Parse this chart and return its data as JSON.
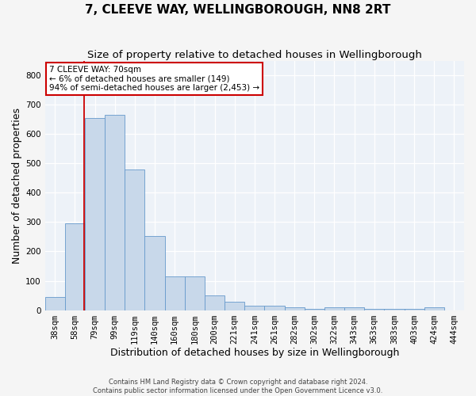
{
  "title": "7, CLEEVE WAY, WELLINGBOROUGH, NN8 2RT",
  "subtitle": "Size of property relative to detached houses in Wellingborough",
  "xlabel": "Distribution of detached houses by size in Wellingborough",
  "ylabel": "Number of detached properties",
  "footer1": "Contains HM Land Registry data © Crown copyright and database right 2024.",
  "footer2": "Contains public sector information licensed under the Open Government Licence v3.0.",
  "categories": [
    "38sqm",
    "58sqm",
    "79sqm",
    "99sqm",
    "119sqm",
    "140sqm",
    "160sqm",
    "180sqm",
    "200sqm",
    "221sqm",
    "241sqm",
    "261sqm",
    "282sqm",
    "302sqm",
    "322sqm",
    "343sqm",
    "363sqm",
    "383sqm",
    "403sqm",
    "424sqm",
    "444sqm"
  ],
  "values": [
    45,
    295,
    655,
    665,
    480,
    252,
    115,
    115,
    50,
    28,
    15,
    15,
    10,
    5,
    10,
    10,
    5,
    5,
    5,
    10,
    0
  ],
  "bar_color": "#c8d8ea",
  "bar_edge_color": "#6699cc",
  "bar_edge_width": 0.6,
  "ylim": [
    0,
    850
  ],
  "yticks": [
    0,
    100,
    200,
    300,
    400,
    500,
    600,
    700,
    800
  ],
  "red_line_x": 1.48,
  "red_line_color": "#cc0000",
  "annotation_text": "7 CLEEVE WAY: 70sqm\n← 6% of detached houses are smaller (149)\n94% of semi-detached houses are larger (2,453) →",
  "annotation_box_edge_color": "#cc0000",
  "bg_color": "#edf2f8",
  "grid_color": "#ffffff",
  "title_fontsize": 11,
  "subtitle_fontsize": 9.5,
  "xlabel_fontsize": 9,
  "ylabel_fontsize": 9,
  "tick_fontsize": 7.5,
  "annot_fontsize": 7.5,
  "footer_fontsize": 6
}
